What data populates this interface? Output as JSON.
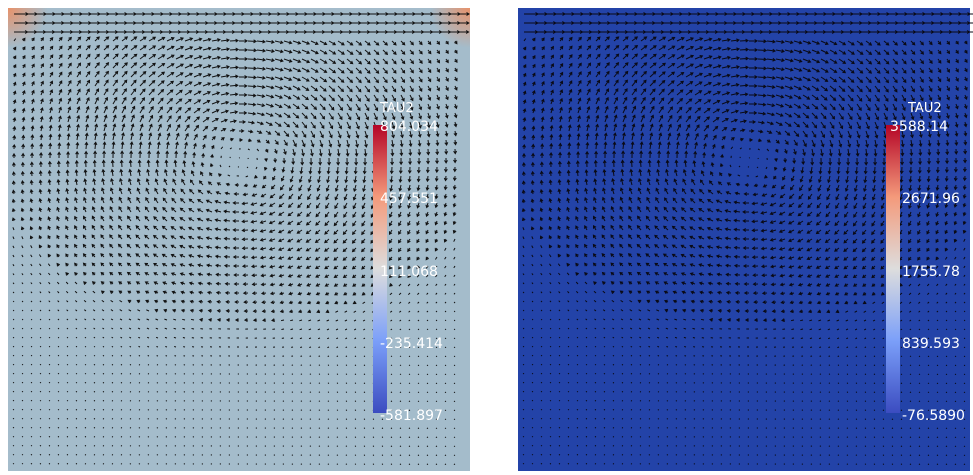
{
  "panels": [
    {
      "colorbar": {
        "title": "TAU2",
        "labels": [
          "804.034",
          "457.551",
          "111.068",
          "-235.414",
          "-581.897"
        ]
      }
    },
    {
      "colorbar": {
        "title": "TAU2",
        "labels": [
          "3588.14",
          "2671.96",
          "1755.78",
          "839.593",
          "-76.5890"
        ]
      }
    }
  ]
}
